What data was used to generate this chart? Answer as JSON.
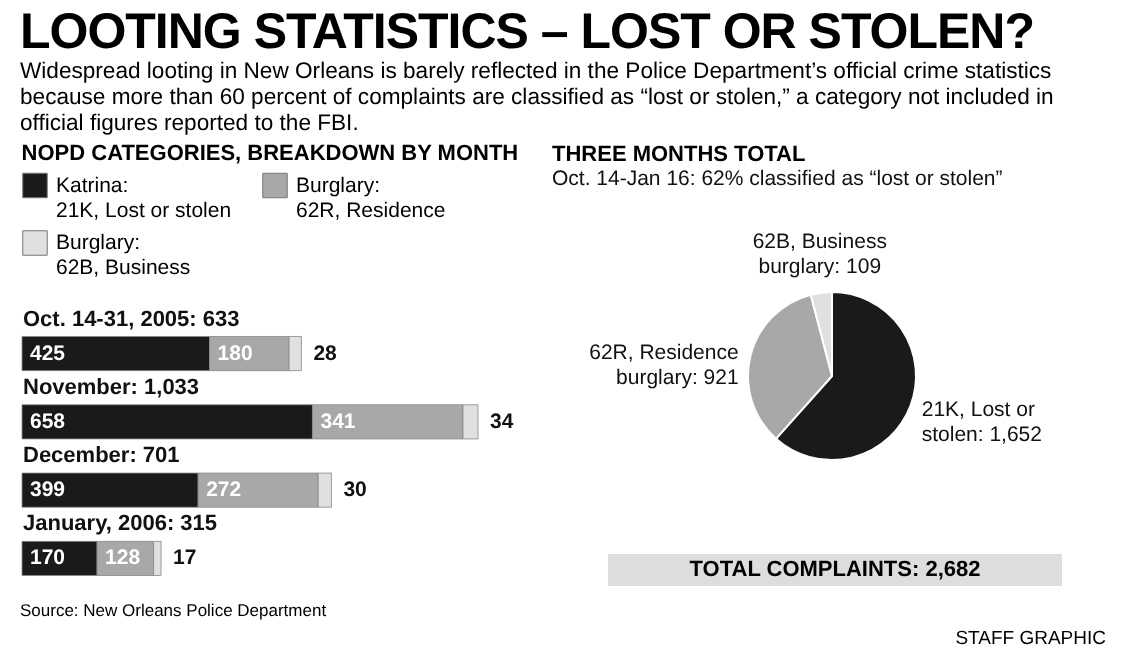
{
  "chart_data": [
    {
      "type": "other",
      "title": "LOOTING STATISTICS – LOST OR STOLEN?",
      "subtitle": "Widespread looting in New Orleans is barely reflected in the Police Department’s official crime statistics because more than 60 percent of complaints are classified as “lost or stolen,” a category not included in official figures reported to the FBI.",
      "annotations": [
        "STAFF GRAPHIC"
      ]
    },
    {
      "type": "bar",
      "orientation": "horizontal",
      "stacked": true,
      "title": "NOPD CATEGORIES, BREAKDOWN BY MONTH",
      "categories": [
        "Oct. 14-31, 2005: 633",
        "November: 1,033",
        "December: 701",
        "January, 2006: 315"
      ],
      "series": [
        {
          "name": "Katrina: 21K, Lost or stolen",
          "color": "#1a1a1a",
          "values": [
            425,
            658,
            399,
            170
          ]
        },
        {
          "name": "Burglary: 62R, Residence",
          "color": "#a8a8a8",
          "values": [
            180,
            341,
            272,
            128
          ]
        },
        {
          "name": "Burglary: 62B, Business",
          "color": "#e0e0e0",
          "values": [
            28,
            34,
            30,
            17
          ]
        }
      ],
      "data_labels": true,
      "legend": "top",
      "annotations": [
        "Source: New Orleans Police Department"
      ]
    },
    {
      "type": "pie",
      "title": "THREE MONTHS TOTAL",
      "subtitle": "Oct. 14-Jan 16: 62% classified as “lost or stolen”",
      "categories": [
        "21K, Lost or stolen",
        "62R, Residence burglary",
        "62B, Business burglary"
      ],
      "values": [
        1652,
        921,
        109
      ],
      "colors": [
        "#1a1a1a",
        "#a8a8a8",
        "#e0e0e0"
      ],
      "value_labels": [
        "1,652",
        "921",
        "109"
      ],
      "annotations": [
        "TOTAL COMPLAINTS: 2,682"
      ]
    }
  ]
}
